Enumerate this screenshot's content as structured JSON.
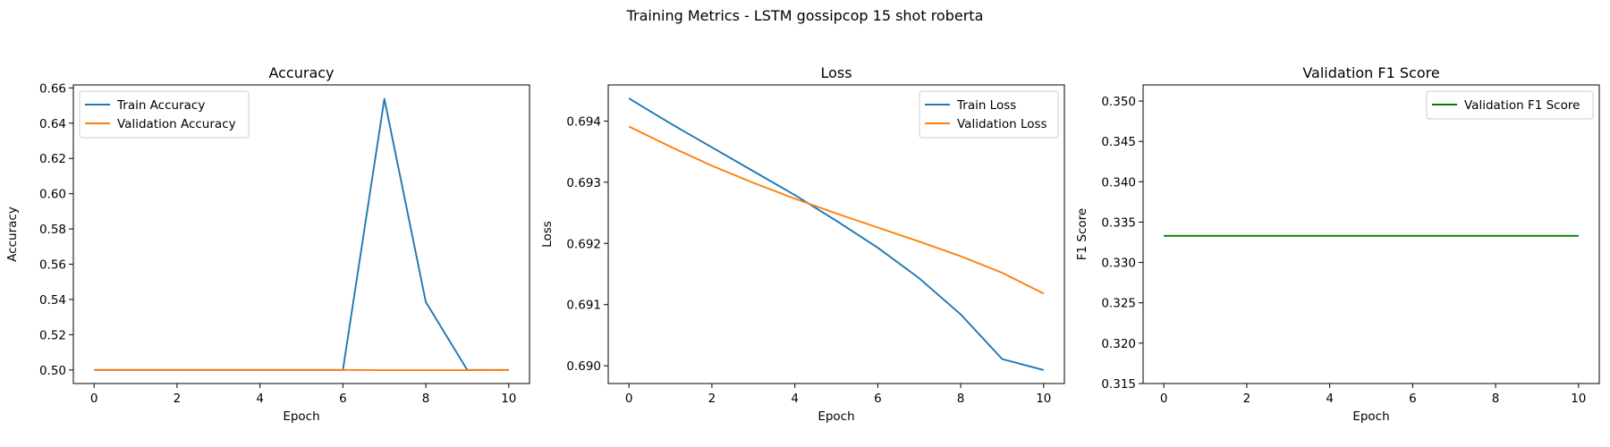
{
  "figure": {
    "suptitle": "Training Metrics - LSTM gossipcop 15 shot roberta"
  },
  "chart_data": [
    {
      "type": "line",
      "title": "Accuracy",
      "xlabel": "Epoch",
      "ylabel": "Accuracy",
      "xlim": [
        -0.5,
        10.5
      ],
      "ylim": [
        0.4923,
        0.6617
      ],
      "x_ticks": [
        0,
        2,
        4,
        6,
        8,
        10
      ],
      "y_ticks": [
        0.5,
        0.52,
        0.54,
        0.56,
        0.58,
        0.6,
        0.62,
        0.64,
        0.66
      ],
      "y_tick_labels": [
        "0.50",
        "0.52",
        "0.54",
        "0.56",
        "0.58",
        "0.60",
        "0.62",
        "0.64",
        "0.66"
      ],
      "legend_position": "upper-left",
      "x": [
        0,
        1,
        2,
        3,
        4,
        5,
        6,
        7,
        8,
        9,
        10
      ],
      "series": [
        {
          "name": "Train Accuracy",
          "color": "#1f77b4",
          "values": [
            0.5,
            0.5,
            0.5,
            0.5,
            0.5,
            0.5,
            0.5,
            0.6538,
            0.5385,
            0.5,
            0.5
          ]
        },
        {
          "name": "Validation Accuracy",
          "color": "#ff7f0e",
          "values": [
            0.5,
            0.5,
            0.5,
            0.5,
            0.5,
            0.5,
            0.5,
            0.4999,
            0.4999,
            0.4999,
            0.5
          ]
        }
      ]
    },
    {
      "type": "line",
      "title": "Loss",
      "xlabel": "Epoch",
      "ylabel": "Loss",
      "xlim": [
        -0.5,
        10.5
      ],
      "ylim": [
        0.68971,
        0.69459
      ],
      "x_ticks": [
        0,
        2,
        4,
        6,
        8,
        10
      ],
      "y_ticks": [
        0.69,
        0.691,
        0.692,
        0.693,
        0.694
      ],
      "y_tick_labels": [
        "0.690",
        "0.691",
        "0.692",
        "0.693",
        "0.694"
      ],
      "legend_position": "upper-right",
      "x": [
        0,
        1,
        2,
        3,
        4,
        5,
        6,
        7,
        8,
        9,
        10
      ],
      "series": [
        {
          "name": "Train Loss",
          "color": "#1f77b4",
          "values": [
            0.69437,
            0.69396,
            0.69357,
            0.69318,
            0.69279,
            0.69237,
            0.69193,
            0.69143,
            0.69084,
            0.69011,
            0.68993
          ]
        },
        {
          "name": "Validation Loss",
          "color": "#ff7f0e",
          "values": [
            0.69391,
            0.69358,
            0.69327,
            0.69299,
            0.69273,
            0.69249,
            0.69226,
            0.69203,
            0.69179,
            0.69152,
            0.69118
          ]
        }
      ]
    },
    {
      "type": "line",
      "title": "Validation F1 Score",
      "xlabel": "Epoch",
      "ylabel": "F1 Score",
      "xlim": [
        -0.5,
        10.5
      ],
      "ylim": [
        0.315,
        0.352
      ],
      "x_ticks": [
        0,
        2,
        4,
        6,
        8,
        10
      ],
      "y_ticks": [
        0.315,
        0.32,
        0.325,
        0.33,
        0.335,
        0.34,
        0.345,
        0.35
      ],
      "y_tick_labels": [
        "0.315",
        "0.320",
        "0.325",
        "0.330",
        "0.335",
        "0.340",
        "0.345",
        "0.350"
      ],
      "legend_position": "upper-right",
      "x": [
        0,
        1,
        2,
        3,
        4,
        5,
        6,
        7,
        8,
        9,
        10
      ],
      "series": [
        {
          "name": "Validation F1 Score",
          "color": "#008000",
          "values": [
            0.3333,
            0.3333,
            0.3333,
            0.3333,
            0.3333,
            0.3333,
            0.3333,
            0.3333,
            0.3333,
            0.3333,
            0.3333
          ]
        }
      ]
    }
  ]
}
